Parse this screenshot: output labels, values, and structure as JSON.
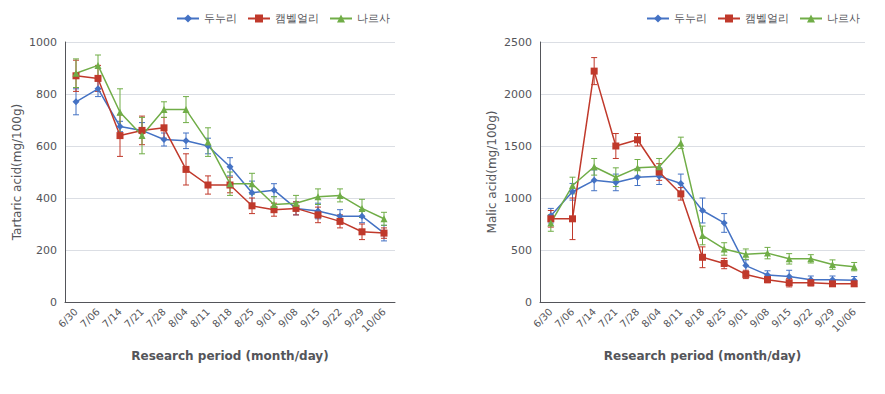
{
  "chart_data": [
    {
      "type": "line",
      "xlabel": "Research period (month/day)",
      "ylabel": "Tartaric acid(mg/100g)",
      "categories": [
        "6/30",
        "7/06",
        "7/14",
        "7/21",
        "7/28",
        "8/04",
        "8/11",
        "8/18",
        "8/25",
        "9/01",
        "9/08",
        "9/15",
        "9/22",
        "9/29",
        "10/06"
      ],
      "ylim": [
        0,
        1000
      ],
      "yticks": [
        0,
        200,
        400,
        600,
        800,
        1000
      ],
      "grid": true,
      "legend": "upper right",
      "series": [
        {
          "name": "두누리",
          "color": "#4472C4",
          "marker": "diamond",
          "values": [
            770,
            820,
            675,
            660,
            625,
            620,
            600,
            520,
            420,
            430,
            360,
            350,
            330,
            330,
            265
          ],
          "yerr": [
            50,
            30,
            20,
            30,
            25,
            30,
            30,
            35,
            45,
            25,
            25,
            30,
            25,
            25,
            30
          ]
        },
        {
          "name": "캠벨얼리",
          "color": "#C0392B",
          "marker": "square",
          "values": [
            870,
            860,
            640,
            660,
            670,
            510,
            450,
            450,
            370,
            355,
            360,
            335,
            310,
            270,
            265
          ],
          "yerr": [
            60,
            50,
            80,
            55,
            40,
            60,
            35,
            30,
            30,
            25,
            25,
            30,
            25,
            30,
            20
          ]
        },
        {
          "name": "나르사",
          "color": "#70AD47",
          "marker": "triangle",
          "values": [
            880,
            910,
            730,
            640,
            740,
            740,
            615,
            455,
            455,
            375,
            380,
            405,
            410,
            360,
            320
          ],
          "yerr": [
            55,
            40,
            90,
            70,
            30,
            50,
            55,
            45,
            40,
            30,
            30,
            30,
            25,
            35,
            25
          ]
        }
      ]
    },
    {
      "type": "line",
      "xlabel": "Research period (month/day)",
      "ylabel": "Malic acid(mg/100g)",
      "categories": [
        "6/30",
        "7/06",
        "7/14",
        "7/21",
        "7/28",
        "8/04",
        "8/11",
        "8/18",
        "8/25",
        "9/01",
        "9/08",
        "9/15",
        "9/22",
        "9/29",
        "10/06"
      ],
      "ylim": [
        0,
        2500
      ],
      "yticks": [
        0,
        500,
        1000,
        1500,
        2000,
        2500
      ],
      "grid": true,
      "legend": "upper right",
      "series": [
        {
          "name": "두누리",
          "color": "#4472C4",
          "marker": "diamond",
          "values": [
            830,
            1060,
            1170,
            1150,
            1200,
            1210,
            1140,
            880,
            760,
            350,
            260,
            245,
            215,
            215,
            210
          ],
          "yerr": [
            70,
            80,
            100,
            80,
            80,
            80,
            90,
            120,
            90,
            55,
            40,
            60,
            35,
            35,
            35
          ]
        },
        {
          "name": "캠벨얼리",
          "color": "#C0392B",
          "marker": "square",
          "values": [
            800,
            800,
            2220,
            1500,
            1560,
            1250,
            1040,
            430,
            370,
            265,
            215,
            185,
            185,
            175,
            175
          ],
          "yerr": [
            80,
            200,
            130,
            120,
            60,
            80,
            60,
            100,
            50,
            40,
            30,
            40,
            30,
            25,
            25
          ]
        },
        {
          "name": "나르사",
          "color": "#70AD47",
          "marker": "triangle",
          "values": [
            760,
            1120,
            1300,
            1200,
            1290,
            1300,
            1530,
            640,
            510,
            460,
            470,
            415,
            415,
            360,
            340
          ],
          "yerr": [
            80,
            80,
            80,
            90,
            80,
            80,
            55,
            90,
            60,
            50,
            55,
            50,
            40,
            45,
            40
          ]
        }
      ]
    }
  ]
}
